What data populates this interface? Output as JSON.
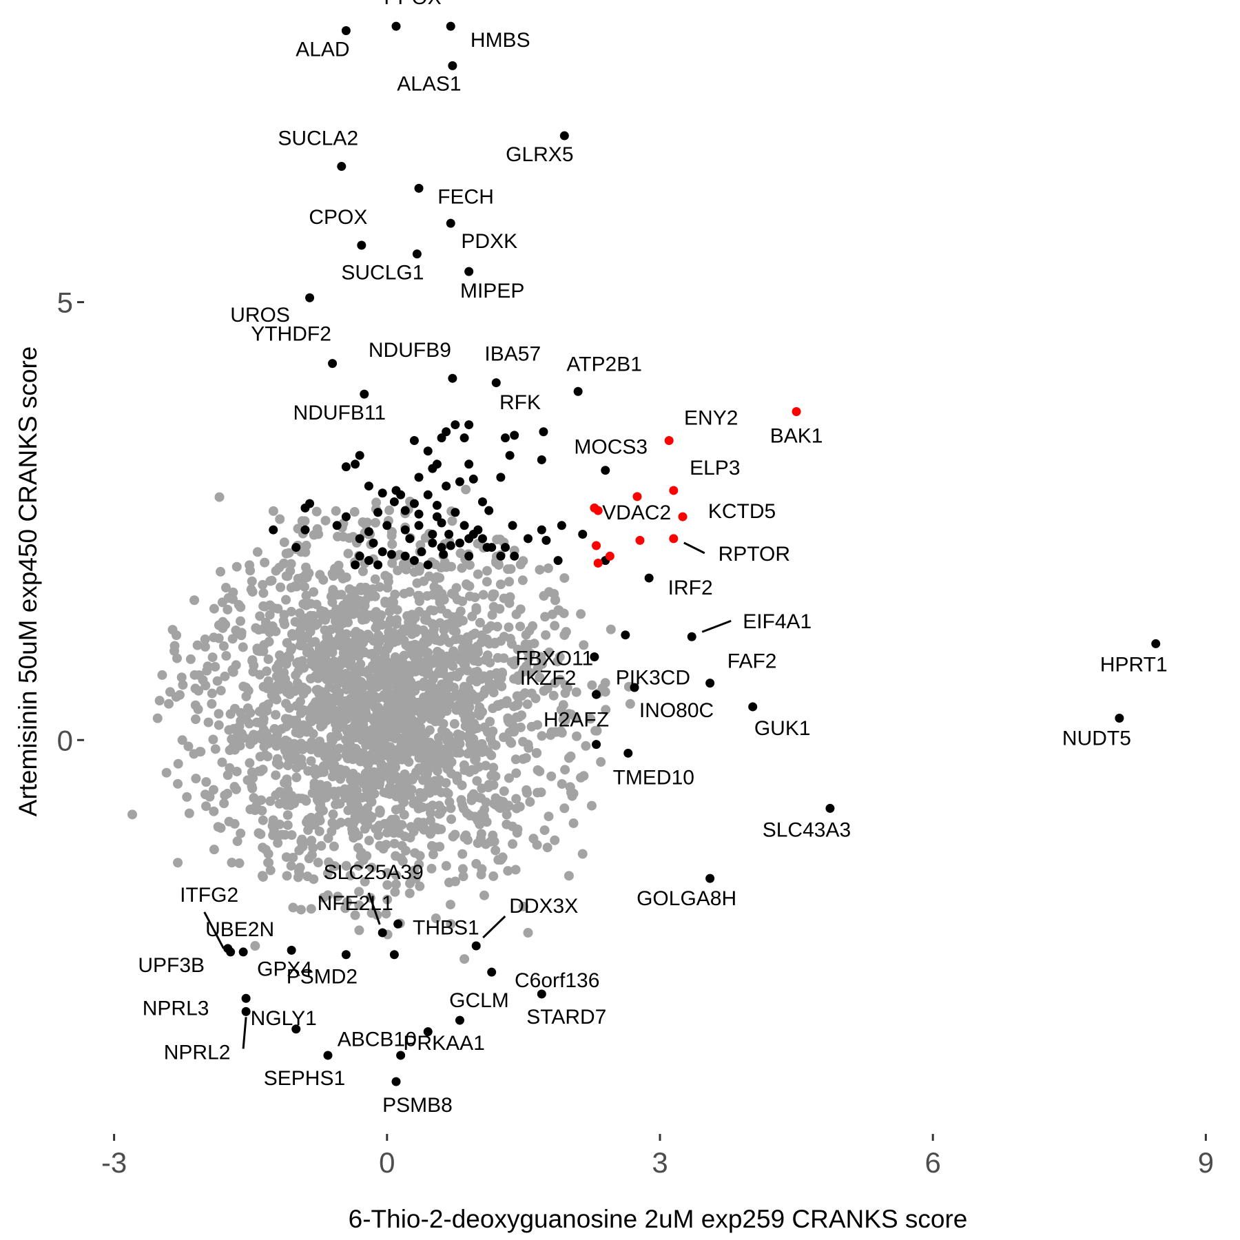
{
  "chart_data": {
    "type": "scatter",
    "title": "",
    "xlabel": "6-Thio-2-deoxyguanosine 2uM exp259 CRANKS score",
    "ylabel": "Artemisinin 50uM exp450 CRANKS score",
    "xlim": [
      -3.3,
      9.3
    ],
    "ylim": [
      -4.45,
      8.45
    ],
    "x_ticks": [
      -3,
      0,
      3,
      6,
      9
    ],
    "x_tick_labels": [
      "-3",
      "0",
      "3",
      "6",
      "9"
    ],
    "y_ticks": [
      0,
      5
    ],
    "y_tick_labels": [
      "0",
      "5"
    ],
    "grid": false,
    "legend": "none",
    "colors": {
      "background_points": "#a3a3a3",
      "hit_points": "#000000",
      "highlight_points": "#ff0000"
    },
    "background_cloud": {
      "description_units": "data",
      "color": "#a3a3a3",
      "n_points": 2200,
      "center": [
        -0.05,
        0.35
      ],
      "sd": [
        0.95,
        0.95
      ],
      "outliers": [
        [
          -2.8,
          -0.85
        ],
        [
          -2.5,
          0.45
        ],
        [
          -2.3,
          -0.5
        ],
        [
          -2.25,
          0.0
        ],
        [
          -2.2,
          -0.65
        ],
        [
          -2.3,
          -1.4
        ],
        [
          -2.0,
          1.15
        ],
        [
          -1.9,
          -1.25
        ],
        [
          -1.9,
          1.5
        ],
        [
          -1.85,
          0.3
        ],
        [
          -1.75,
          -0.4
        ],
        [
          -1.7,
          0.8
        ],
        [
          -1.55,
          0.6
        ],
        [
          -1.2,
          1.5
        ],
        [
          -1.3,
          -1.4
        ],
        [
          -1.1,
          -1.55
        ],
        [
          -0.7,
          -1.8
        ],
        [
          -0.35,
          -2.0
        ],
        [
          0.25,
          -1.75
        ],
        [
          0.7,
          -2.1
        ],
        [
          0.85,
          -2.5
        ],
        [
          1.5,
          -1.9
        ],
        [
          1.55,
          -2.2
        ],
        [
          2.0,
          -1.55
        ],
        [
          2.05,
          -0.95
        ],
        [
          2.15,
          -1.3
        ],
        [
          2.25,
          -0.75
        ],
        [
          2.4,
          0.55
        ],
        [
          2.35,
          -0.25
        ],
        [
          1.85,
          1.6
        ],
        [
          1.95,
          1.85
        ],
        [
          -1.45,
          -2.35
        ],
        [
          1.9,
          0.95
        ],
        [
          2.0,
          0.3
        ],
        [
          -0.6,
          1.9
        ]
      ]
    },
    "series": [
      {
        "color": "#000000",
        "labeled": [
          {
            "label": "PPOX",
            "x": 0.1,
            "y": 8.15
          },
          {
            "label": "ALAD",
            "x": -0.45,
            "y": 8.1
          },
          {
            "label": "HMBS",
            "x": 0.7,
            "y": 8.15
          },
          {
            "label": "ALAS1",
            "x": 0.72,
            "y": 7.7
          },
          {
            "label": "GLRX5",
            "x": 1.95,
            "y": 6.9
          },
          {
            "label": "SUCLA2",
            "x": -0.5,
            "y": 6.55
          },
          {
            "label": "FECH",
            "x": 0.35,
            "y": 6.3
          },
          {
            "label": "PDXK",
            "x": 0.7,
            "y": 5.9
          },
          {
            "label": "CPOX",
            "x": -0.28,
            "y": 5.65
          },
          {
            "label": "SUCLG1",
            "x": 0.33,
            "y": 5.55
          },
          {
            "label": "MIPEP",
            "x": 0.9,
            "y": 5.35
          },
          {
            "label": "UROS",
            "x": -0.85,
            "y": 5.05
          },
          {
            "label": "YTHDF2",
            "x": -0.6,
            "y": 4.3
          },
          {
            "label": "NDUFB9",
            "x": 0.72,
            "y": 4.13
          },
          {
            "label": "IBA57",
            "x": 1.2,
            "y": 4.08
          },
          {
            "label": "ATP2B1",
            "x": 2.1,
            "y": 3.98
          },
          {
            "label": "NDUFB11",
            "x": -0.25,
            "y": 3.95
          },
          {
            "label": "RFK",
            "x": 1.72,
            "y": 3.52
          },
          {
            "label": "MOCS3",
            "x": 2.4,
            "y": 3.08
          },
          {
            "label": "IRF2",
            "x": 2.88,
            "y": 1.85
          },
          {
            "label": "EIF4A1",
            "x": 3.35,
            "y": 1.18
          },
          {
            "label": "FBXO11",
            "x": 2.62,
            "y": 1.2
          },
          {
            "label": "PIK3CD",
            "x": 2.28,
            "y": 0.95
          },
          {
            "label": "FAF2",
            "x": 3.55,
            "y": 0.65
          },
          {
            "label": "IKZF2",
            "x": 2.3,
            "y": 0.52
          },
          {
            "label": "INO80C",
            "x": 2.72,
            "y": 0.6
          },
          {
            "label": "GUK1",
            "x": 4.02,
            "y": 0.38
          },
          {
            "label": "HPRT1",
            "x": 8.45,
            "y": 1.1
          },
          {
            "label": "NUDT5",
            "x": 8.05,
            "y": 0.25
          },
          {
            "label": "H2AFZ",
            "x": 2.3,
            "y": -0.05
          },
          {
            "label": "TMED10",
            "x": 2.65,
            "y": -0.15
          },
          {
            "label": "SLC43A3",
            "x": 4.87,
            "y": -0.78
          },
          {
            "label": "GOLGA8H",
            "x": 3.55,
            "y": -1.58
          },
          {
            "label": "ITFG2",
            "x": -1.72,
            "y": -2.42
          },
          {
            "label": "UBE2N",
            "x": -1.58,
            "y": -2.42
          },
          {
            "label": "UPF3B",
            "x": -1.75,
            "y": -2.38
          },
          {
            "label": "SLC25A39",
            "x": -0.05,
            "y": -2.2
          },
          {
            "label": "NFE2L1",
            "x": 0.12,
            "y": -2.1
          },
          {
            "label": "THBS1",
            "x": 0.08,
            "y": -2.45
          },
          {
            "label": "DDX3X",
            "x": 0.98,
            "y": -2.35
          },
          {
            "label": "C6orf136",
            "x": 1.15,
            "y": -2.65
          },
          {
            "label": "PSMD2",
            "x": -0.45,
            "y": -2.45
          },
          {
            "label": "GPX4",
            "x": -1.05,
            "y": -2.4
          },
          {
            "label": "GCLM",
            "x": 0.8,
            "y": -3.2
          },
          {
            "label": "STARD7",
            "x": 1.7,
            "y": -2.9
          },
          {
            "label": "NPRL3",
            "x": -1.55,
            "y": -2.95
          },
          {
            "label": "NGLY1",
            "x": -1.0,
            "y": -3.3
          },
          {
            "label": "NPRL2",
            "x": -1.55,
            "y": -3.1
          },
          {
            "label": "ABCB10",
            "x": 0.45,
            "y": -3.33
          },
          {
            "label": "SEPHS1",
            "x": -0.65,
            "y": -3.6
          },
          {
            "label": "PRKAA1",
            "x": 0.15,
            "y": -3.6
          },
          {
            "label": "PSMB8",
            "x": 0.1,
            "y": -3.9
          }
        ]
      },
      {
        "color": "#ff0000",
        "labeled": [
          {
            "label": "BAK1",
            "x": 4.5,
            "y": 3.75
          },
          {
            "label": "ENY2",
            "x": 3.1,
            "y": 3.42
          },
          {
            "label": "ELP3",
            "x": 3.15,
            "y": 2.85
          },
          {
            "label": "KCTD5",
            "x": 3.25,
            "y": 2.55
          },
          {
            "label": "VDAC2",
            "x": 2.32,
            "y": 2.62
          },
          {
            "label": "RPTOR",
            "x": 3.15,
            "y": 2.3
          }
        ],
        "unlabeled": [
          [
            2.75,
            2.78
          ],
          [
            2.78,
            2.28
          ],
          [
            2.3,
            2.22
          ],
          [
            2.32,
            2.02
          ],
          [
            2.45,
            2.1
          ],
          [
            2.28,
            2.65
          ]
        ]
      }
    ],
    "unlabeled_hits": [
      [
        1.3,
        3.45
      ],
      [
        1.4,
        3.48
      ],
      [
        1.35,
        3.25
      ],
      [
        1.7,
        3.2
      ],
      [
        0.9,
        3.6
      ],
      [
        0.85,
        3.45
      ],
      [
        0.65,
        3.52
      ],
      [
        0.6,
        3.45
      ],
      [
        0.3,
        3.42
      ],
      [
        0.45,
        3.3
      ],
      [
        -0.3,
        3.25
      ],
      [
        -0.35,
        3.15
      ],
      [
        0.75,
        3.6
      ],
      [
        0.5,
        3.1
      ],
      [
        0.35,
        3.0
      ],
      [
        0.55,
        3.15
      ],
      [
        0.9,
        3.15
      ],
      [
        1.25,
        3.0
      ],
      [
        0.95,
        2.98
      ],
      [
        -0.45,
        3.12
      ],
      [
        -0.2,
        2.9
      ],
      [
        0.1,
        2.85
      ],
      [
        0.15,
        2.8
      ],
      [
        -0.05,
        2.82
      ],
      [
        0.65,
        2.9
      ],
      [
        0.8,
        2.95
      ],
      [
        1.05,
        2.72
      ],
      [
        1.12,
        2.62
      ],
      [
        0.55,
        2.68
      ],
      [
        0.3,
        2.7
      ],
      [
        -0.85,
        2.7
      ],
      [
        -0.9,
        2.65
      ],
      [
        -1.25,
        2.4
      ],
      [
        -0.9,
        2.4
      ],
      [
        -1.0,
        2.2
      ],
      [
        -0.55,
        2.45
      ],
      [
        -0.3,
        2.3
      ],
      [
        -0.2,
        2.38
      ],
      [
        -0.1,
        2.6
      ],
      [
        0.0,
        2.45
      ],
      [
        0.2,
        2.4
      ],
      [
        0.25,
        2.3
      ],
      [
        0.35,
        2.45
      ],
      [
        0.5,
        2.25
      ],
      [
        0.6,
        2.2
      ],
      [
        0.68,
        2.35
      ],
      [
        0.85,
        2.45
      ],
      [
        0.9,
        2.3
      ],
      [
        0.95,
        2.35
      ],
      [
        1.0,
        2.4
      ],
      [
        1.15,
        2.2
      ],
      [
        1.3,
        2.2
      ],
      [
        1.38,
        2.45
      ],
      [
        1.55,
        2.3
      ],
      [
        1.7,
        2.4
      ],
      [
        1.75,
        2.28
      ],
      [
        1.92,
        2.45
      ],
      [
        2.15,
        2.35
      ],
      [
        1.88,
        2.05
      ],
      [
        2.4,
        2.05
      ],
      [
        -0.3,
        2.1
      ],
      [
        -0.2,
        2.05
      ],
      [
        -0.05,
        2.15
      ],
      [
        -0.15,
        2.25
      ],
      [
        0.3,
        2.05
      ],
      [
        0.38,
        2.15
      ],
      [
        0.62,
        2.12
      ],
      [
        0.7,
        2.22
      ],
      [
        0.5,
        2.35
      ],
      [
        0.9,
        2.1
      ],
      [
        1.1,
        2.2
      ],
      [
        1.4,
        2.1
      ],
      [
        0.05,
        2.12
      ],
      [
        -0.1,
        2.0
      ],
      [
        0.45,
        2.0
      ],
      [
        0.8,
        2.25
      ],
      [
        -0.35,
        2.0
      ],
      [
        0.2,
        2.1
      ],
      [
        1.05,
        2.3
      ],
      [
        1.25,
        2.1
      ],
      [
        0.55,
        2.55
      ],
      [
        0.75,
        2.6
      ],
      [
        0.45,
        2.8
      ],
      [
        0.2,
        2.62
      ],
      [
        -0.45,
        2.55
      ],
      [
        0.08,
        2.72
      ],
      [
        0.6,
        2.48
      ],
      [
        0.35,
        2.58
      ]
    ]
  }
}
